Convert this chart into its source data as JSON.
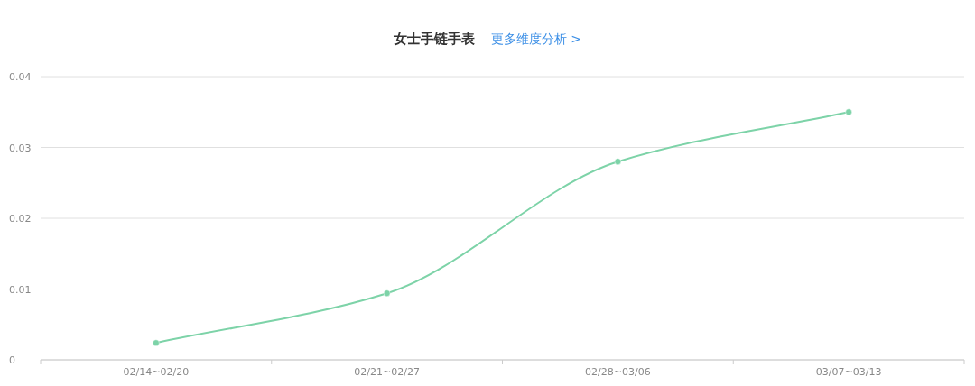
{
  "chart_data": {
    "type": "line",
    "title": "女士手链手表",
    "subtitle": "更多维度分析 >",
    "categories": [
      "02/14~02/20",
      "02/21~02/27",
      "02/28~03/06",
      "03/07~03/13"
    ],
    "series": [
      {
        "color": "#7dd3a8",
        "values": [
          0.0024,
          0.0094,
          0.028,
          0.035
        ]
      }
    ],
    "ylim": [
      0,
      0.04
    ],
    "yticks": [
      0,
      0.01,
      0.02,
      0.03,
      0.04
    ],
    "grid": "y",
    "marker": "circle"
  }
}
